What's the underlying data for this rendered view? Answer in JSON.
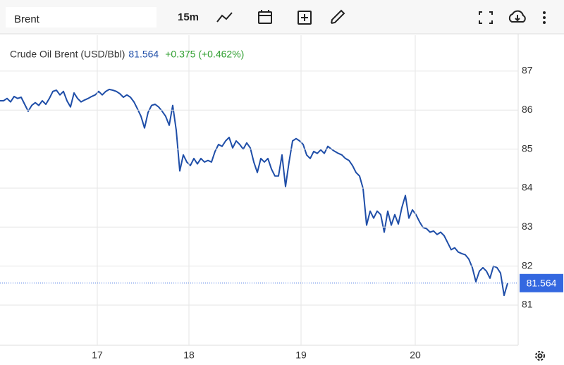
{
  "chart_data": {
    "type": "line",
    "search": "Brent",
    "interval": "15m",
    "series": [
      {
        "name": "Crude Oil Brent (USD/Bbl)",
        "color": "#1f4ea8",
        "values": [
          86.24,
          86.24,
          86.3,
          86.21,
          86.35,
          86.3,
          86.33,
          86.15,
          85.97,
          86.12,
          86.19,
          86.12,
          86.24,
          86.15,
          86.3,
          86.48,
          86.51,
          86.39,
          86.48,
          86.24,
          86.08,
          86.44,
          86.3,
          86.21,
          86.26,
          86.3,
          86.35,
          86.39,
          86.48,
          86.39,
          86.48,
          86.53,
          86.51,
          86.48,
          86.42,
          86.33,
          86.39,
          86.33,
          86.21,
          86.03,
          85.84,
          85.54,
          85.94,
          86.12,
          86.15,
          86.08,
          85.97,
          85.84,
          85.61,
          86.12,
          85.48,
          84.44,
          84.85,
          84.67,
          84.58,
          84.76,
          84.62,
          84.76,
          84.67,
          84.71,
          84.67,
          84.94,
          85.12,
          85.07,
          85.21,
          85.3,
          85.03,
          85.21,
          85.12,
          85.0,
          85.16,
          85.03,
          84.67,
          84.4,
          84.76,
          84.67,
          84.76,
          84.49,
          84.31,
          84.31,
          84.85,
          84.04,
          84.67,
          85.21,
          85.27,
          85.21,
          85.12,
          84.85,
          84.76,
          84.94,
          84.89,
          84.98,
          84.89,
          85.07,
          85.0,
          84.94,
          84.89,
          84.85,
          84.76,
          84.71,
          84.58,
          84.4,
          84.31,
          83.99,
          83.05,
          83.41,
          83.23,
          83.41,
          83.32,
          82.87,
          83.41,
          83.05,
          83.32,
          83.08,
          83.5,
          83.81,
          83.23,
          83.44,
          83.32,
          83.14,
          82.99,
          82.96,
          82.87,
          82.9,
          82.81,
          82.87,
          82.78,
          82.6,
          82.42,
          82.47,
          82.36,
          82.32,
          82.29,
          82.18,
          81.96,
          81.6,
          81.87,
          81.96,
          81.87,
          81.69,
          82.0,
          81.96,
          81.82,
          81.25,
          81.56
        ]
      }
    ],
    "last_value": 81.564,
    "last_color": "#3468e0",
    "change_label": "+0.375 (+0.462%)",
    "xlim": [
      0,
      147
    ],
    "xticks": [
      {
        "value": 27.6,
        "label": "17"
      },
      {
        "value": 53.6,
        "label": "18"
      },
      {
        "value": 85.4,
        "label": "19"
      },
      {
        "value": 117.8,
        "label": "20"
      }
    ],
    "ylim": [
      79.97,
      87.92
    ],
    "yticks": [
      81,
      82,
      83,
      84,
      85,
      86,
      87
    ],
    "grid": true
  }
}
